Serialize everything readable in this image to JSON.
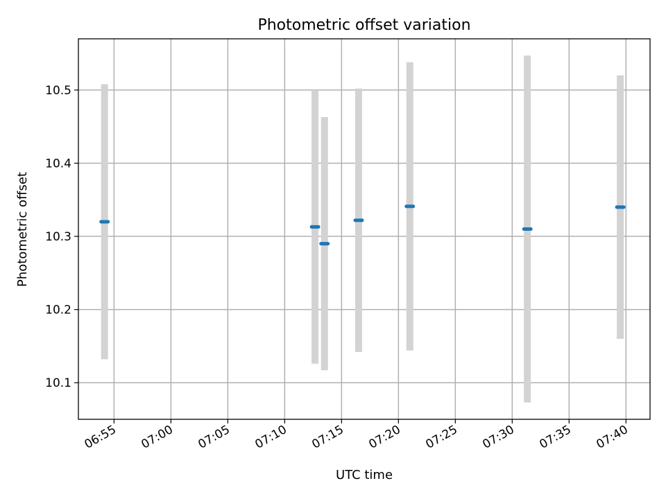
{
  "chart_data": {
    "type": "scatter",
    "title": "Photometric offset variation",
    "xlabel": "UTC time",
    "ylabel": "Photometric offset",
    "x_ticks": [
      "06:55",
      "07:00",
      "07:05",
      "07:10",
      "07:15",
      "07:20",
      "07:25",
      "07:30",
      "07:35",
      "07:40"
    ],
    "y_ticks": [
      "10.1",
      "10.2",
      "10.3",
      "10.4",
      "10.5"
    ],
    "xlim": [
      "06:51:52",
      "07:42:07"
    ],
    "ylim": [
      10.05,
      10.57
    ],
    "grid": true,
    "colors": {
      "point": "#1f77b4",
      "errorbar": "#d3d3d3",
      "grid": "#b0b0b0"
    },
    "points": [
      {
        "x": "06:54:10",
        "y": 10.32,
        "yerr": 0.188
      },
      {
        "x": "07:12:40",
        "y": 10.313,
        "yerr": 0.187
      },
      {
        "x": "07:13:30",
        "y": 10.29,
        "yerr": 0.173
      },
      {
        "x": "07:16:30",
        "y": 10.322,
        "yerr": 0.18
      },
      {
        "x": "07:21:00",
        "y": 10.341,
        "yerr": 0.197
      },
      {
        "x": "07:31:20",
        "y": 10.31,
        "yerr": 0.237
      },
      {
        "x": "07:39:30",
        "y": 10.34,
        "yerr": 0.18
      }
    ]
  }
}
